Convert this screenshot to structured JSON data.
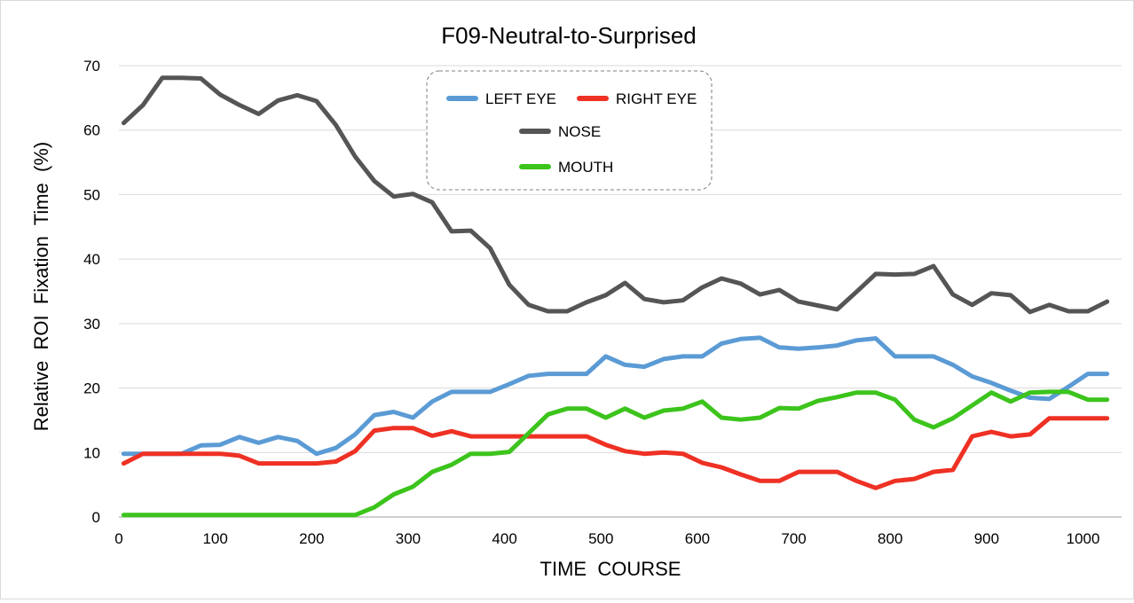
{
  "chart_data": {
    "type": "line",
    "title": "F09-Neutral-to-Surprised",
    "xlabel": "TIME  COURSE",
    "ylabel": "Relative  ROI  Fixation  Time  (%)",
    "xlim": [
      0,
      1040
    ],
    "ylim": [
      0,
      70
    ],
    "x_ticks": [
      0,
      100,
      200,
      300,
      400,
      500,
      600,
      700,
      800,
      900,
      1000
    ],
    "y_ticks": [
      0,
      10,
      20,
      30,
      40,
      50,
      60,
      70
    ],
    "grid": "horizontal",
    "legend": "top-center",
    "x": [
      5,
      25,
      45,
      65,
      85,
      105,
      125,
      145,
      165,
      185,
      205,
      225,
      245,
      265,
      285,
      305,
      325,
      345,
      365,
      385,
      405,
      425,
      445,
      465,
      485,
      505,
      525,
      545,
      565,
      585,
      605,
      625,
      645,
      665,
      685,
      705,
      725,
      745,
      765,
      785,
      805,
      825,
      845,
      865,
      885,
      905,
      925,
      945,
      965,
      985,
      1005,
      1025
    ],
    "series": [
      {
        "name": "LEFT EYE",
        "color": "#5b9bd5",
        "values": [
          9.8,
          9.8,
          9.8,
          9.8,
          11.1,
          11.2,
          12.4,
          11.5,
          12.4,
          11.8,
          9.8,
          10.7,
          12.8,
          15.8,
          16.3,
          15.4,
          17.9,
          19.4,
          19.4,
          19.4,
          20.6,
          21.9,
          22.2,
          22.2,
          22.2,
          24.9,
          23.6,
          23.3,
          24.5,
          24.9,
          24.9,
          26.9,
          27.6,
          27.8,
          26.3,
          26.1,
          26.3,
          26.6,
          27.4,
          27.7,
          24.9,
          24.9,
          24.9,
          23.6,
          21.8,
          20.8,
          19.6,
          18.5,
          18.3,
          20.2,
          22.2,
          22.2
        ]
      },
      {
        "name": "RIGHT EYE",
        "color": "#ee3124",
        "values": [
          8.3,
          9.8,
          9.8,
          9.8,
          9.8,
          9.8,
          9.5,
          8.3,
          8.3,
          8.3,
          8.3,
          8.6,
          10.2,
          13.4,
          13.8,
          13.8,
          12.6,
          13.3,
          12.5,
          12.5,
          12.5,
          12.5,
          12.5,
          12.5,
          12.5,
          11.2,
          10.2,
          9.8,
          10.0,
          9.8,
          8.4,
          7.7,
          6.6,
          5.6,
          5.6,
          7.0,
          7.0,
          7.0,
          5.6,
          4.5,
          5.6,
          5.9,
          7.0,
          7.3,
          12.5,
          13.2,
          12.5,
          12.8,
          15.3,
          15.3,
          15.3,
          15.3
        ]
      },
      {
        "name": "NOSE",
        "color": "#555555",
        "values": [
          61.1,
          63.9,
          68.1,
          68.1,
          68.0,
          65.5,
          63.9,
          62.5,
          64.6,
          65.4,
          64.5,
          60.8,
          55.9,
          52.1,
          49.7,
          50.1,
          48.8,
          44.3,
          44.4,
          41.7,
          36.0,
          32.9,
          31.9,
          31.9,
          33.3,
          34.4,
          36.3,
          33.8,
          33.3,
          33.6,
          35.6,
          37.0,
          36.2,
          34.5,
          35.2,
          33.4,
          32.8,
          32.2,
          34.9,
          37.7,
          37.6,
          37.7,
          38.9,
          34.5,
          32.9,
          34.7,
          34.4,
          31.8,
          32.9,
          31.9,
          31.9,
          33.4
        ]
      },
      {
        "name": "MOUTH",
        "color": "#3cc41c",
        "values": [
          0.3,
          0.3,
          0.3,
          0.3,
          0.3,
          0.3,
          0.3,
          0.3,
          0.3,
          0.3,
          0.3,
          0.3,
          0.3,
          1.5,
          3.5,
          4.7,
          7.0,
          8.1,
          9.8,
          9.8,
          10.1,
          13.0,
          15.9,
          16.8,
          16.8,
          15.4,
          16.8,
          15.4,
          16.5,
          16.8,
          17.9,
          15.4,
          15.1,
          15.4,
          16.9,
          16.8,
          18.0,
          18.6,
          19.3,
          19.3,
          18.2,
          15.1,
          13.9,
          15.3,
          17.3,
          19.3,
          17.9,
          19.3,
          19.4,
          19.4,
          18.2,
          18.2
        ]
      }
    ]
  }
}
